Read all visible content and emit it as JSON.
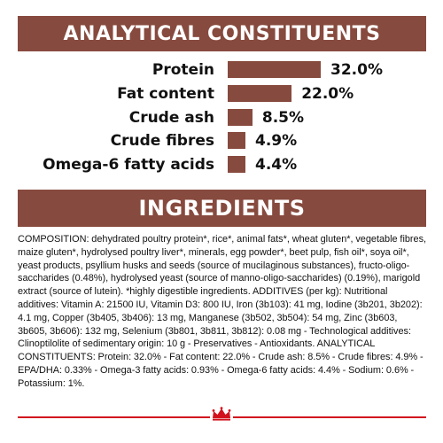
{
  "analytical": {
    "title": "ANALYTICAL CONSTITUENTS",
    "bar_color": "#874a3e",
    "rows": [
      {
        "label": "Protein",
        "value": "32.0%",
        "percent": 32.0
      },
      {
        "label": "Fat content",
        "value": "22.0%",
        "percent": 22.0
      },
      {
        "label": "Crude ash",
        "value": "8.5%",
        "percent": 8.5
      },
      {
        "label": "Crude fibres",
        "value": "4.9%",
        "percent": 4.9
      },
      {
        "label": "Omega-6 fatty acids",
        "value": "4.4%",
        "percent": 4.4
      }
    ]
  },
  "ingredients": {
    "title": "INGREDIENTS",
    "text": "COMPOSITION: dehydrated poultry protein*, rice*, animal fats*, wheat gluten*, vegetable fibres, maize gluten*, hydrolysed poultry liver*, minerals, egg powder*, beet pulp, fish oil*, soya oil*, yeast products, psyllium husks and seeds (source of mucilaginous substances), fructo-oligo-saccharides (0.48%), hydrolysed yeast (source of manno-oligo-saccharides) (0.19%), marigold extract (source of lutein). *highly digestible ingredients. ADDITIVES (per kg): Nutritional additives: Vitamin A: 21500 IU, Vitamin D3: 800 IU, Iron (3b103): 41 mg, Iodine (3b201, 3b202): 4.1 mg, Copper (3b405, 3b406): 13 mg, Manganese (3b502, 3b504): 54 mg, Zinc (3b603, 3b605, 3b606): 132 mg, Selenium (3b801, 3b811, 3b812): 0.08 mg - Technological additives: Clinoptilolite of sedimentary origin: 10 g - Preservatives - Antioxidants. ANALYTICAL CONSTITUENTS: Protein: 32.0% - Fat content: 22.0% - Crude ash: 8.5% - Crude fibres: 4.9% - EPA/DHA: 0.33% - Omega-3 fatty acids: 0.93% - Omega-6 fatty acids: 4.4% - Sodium: 0.6% - Potassium: 1%."
  },
  "footer": {
    "rule_color": "#d1121d",
    "logo_icon": "crown-logo-icon"
  }
}
